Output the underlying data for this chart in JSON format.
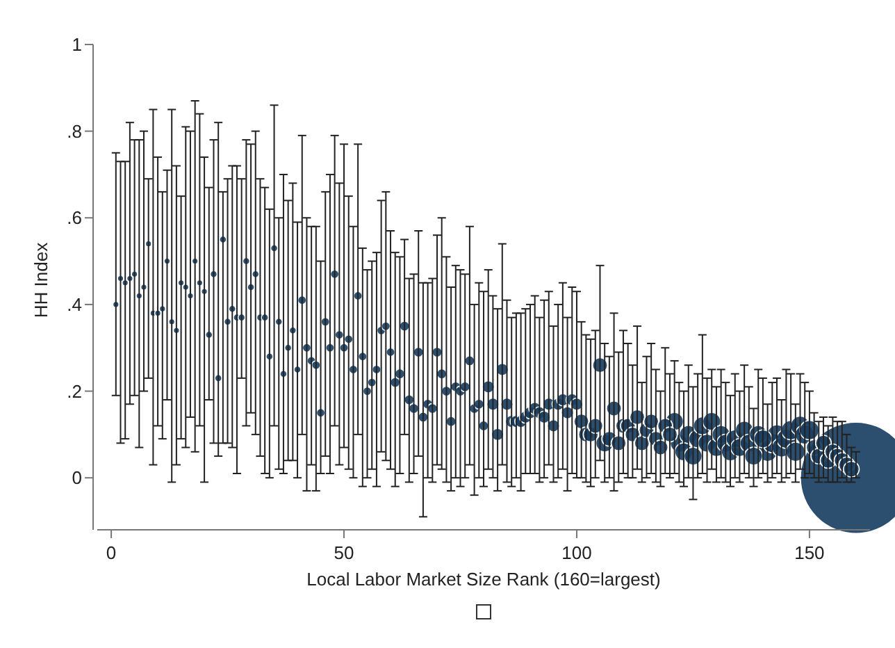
{
  "chart_data": {
    "type": "bubble",
    "xlabel": "Local Labor Market Size Rank (160=largest)",
    "ylabel": "HH Index",
    "xlim": [
      -3,
      163
    ],
    "ylim": [
      -0.12,
      1
    ],
    "xticks": [
      0,
      50,
      100,
      150
    ],
    "yticks": [
      0,
      {
        "value": 0.2,
        "label": ".2"
      },
      {
        "value": 0.4,
        "label": ".4"
      },
      {
        "value": 0.6,
        "label": ".6"
      },
      {
        "value": 0.8,
        "label": ".8"
      },
      1
    ],
    "grid": false,
    "series": [
      {
        "color": "#1a3f63",
        "x": [
          1,
          2,
          3,
          4,
          5,
          6,
          7,
          8,
          9,
          10,
          11,
          12,
          13,
          14,
          15,
          16,
          17,
          18,
          19,
          20,
          21,
          22,
          23,
          24,
          25,
          26,
          27,
          28,
          29,
          30,
          31,
          32,
          33,
          34,
          35,
          36,
          37,
          38,
          39,
          40,
          41,
          42,
          43,
          44,
          45,
          46,
          47,
          48,
          49,
          50,
          51,
          52,
          53,
          54,
          55,
          56,
          57,
          58,
          59,
          60,
          61,
          62,
          63,
          64,
          65,
          66,
          67,
          68,
          69,
          70,
          71,
          72,
          73,
          74,
          75,
          76,
          77,
          78,
          79,
          80,
          81,
          82,
          83,
          84,
          85,
          86,
          87,
          88,
          89,
          90,
          91,
          92,
          93,
          94,
          95,
          96,
          97,
          98,
          99,
          100,
          101,
          102,
          103,
          104,
          105,
          106,
          107,
          108,
          109,
          110,
          111,
          112,
          113,
          114,
          115,
          116,
          117,
          118,
          119,
          120,
          121,
          122,
          123,
          124,
          125,
          126,
          127,
          128,
          129,
          130,
          131,
          132,
          133,
          134,
          135,
          136,
          137,
          138,
          139,
          140,
          141,
          142,
          143,
          144,
          145,
          146,
          147,
          148,
          149,
          150,
          151,
          152,
          153,
          154,
          155,
          156,
          157,
          158,
          159,
          160
        ],
        "values": [
          0.4,
          0.46,
          0.45,
          0.46,
          0.47,
          0.42,
          0.44,
          0.54,
          0.38,
          0.38,
          0.39,
          0.5,
          0.36,
          0.34,
          0.45,
          0.44,
          0.42,
          0.5,
          0.45,
          0.43,
          0.33,
          0.47,
          0.23,
          0.55,
          0.36,
          0.39,
          0.37,
          0.37,
          0.5,
          0.44,
          0.47,
          0.37,
          0.37,
          0.28,
          0.53,
          0.36,
          0.24,
          0.3,
          0.34,
          0.25,
          0.41,
          0.3,
          0.27,
          0.26,
          0.15,
          0.36,
          0.3,
          0.47,
          0.33,
          0.3,
          0.32,
          0.25,
          0.42,
          0.28,
          0.2,
          0.22,
          0.25,
          0.34,
          0.35,
          0.29,
          0.22,
          0.24,
          0.35,
          0.18,
          0.16,
          0.29,
          0.14,
          0.17,
          0.16,
          0.29,
          0.24,
          0.2,
          0.13,
          0.21,
          0.2,
          0.21,
          0.27,
          0.16,
          0.17,
          0.12,
          0.21,
          0.17,
          0.1,
          0.25,
          0.17,
          0.13,
          0.13,
          0.13,
          0.14,
          0.15,
          0.16,
          0.15,
          0.14,
          0.17,
          0.12,
          0.17,
          0.18,
          0.15,
          0.18,
          0.17,
          0.13,
          0.1,
          0.1,
          0.12,
          0.26,
          0.08,
          0.09,
          0.16,
          0.08,
          0.12,
          0.12,
          0.1,
          0.14,
          0.08,
          0.11,
          0.13,
          0.09,
          0.07,
          0.12,
          0.1,
          0.13,
          0.08,
          0.06,
          0.1,
          0.05,
          0.09,
          0.12,
          0.08,
          0.13,
          0.07,
          0.1,
          0.08,
          0.06,
          0.09,
          0.07,
          0.11,
          0.08,
          0.05,
          0.1,
          0.09,
          0.06,
          0.08,
          0.1,
          0.07,
          0.09,
          0.11,
          0.06,
          0.12,
          0.1,
          0.11,
          0.07,
          0.05,
          0.08,
          0.04,
          0.06,
          0.05,
          0.04,
          0.03,
          0.02,
          0
        ],
        "errors": [
          [
            0.19,
            0.75
          ],
          [
            0.08,
            0.73
          ],
          [
            0.09,
            0.73
          ],
          [
            0.17,
            0.82
          ],
          [
            0.19,
            0.78
          ],
          [
            0.07,
            0.78
          ],
          [
            0.2,
            0.8
          ],
          [
            0.23,
            0.69
          ],
          [
            0.03,
            0.85
          ],
          [
            0.12,
            0.74
          ],
          [
            0.09,
            0.66
          ],
          [
            0.18,
            0.71
          ],
          [
            -0.01,
            0.85
          ],
          [
            0.03,
            0.72
          ],
          [
            0.09,
            0.65
          ],
          [
            0.07,
            0.81
          ],
          [
            0.14,
            0.8
          ],
          [
            0.06,
            0.87
          ],
          [
            0.12,
            0.84
          ],
          [
            -0.01,
            0.74
          ],
          [
            0.18,
            0.67
          ],
          [
            0.08,
            0.78
          ],
          [
            0.05,
            0.82
          ],
          [
            0.08,
            0.66
          ],
          [
            0.08,
            0.69
          ],
          [
            0.07,
            0.72
          ],
          [
            0.01,
            0.72
          ],
          [
            0.23,
            0.69
          ],
          [
            0.12,
            0.78
          ],
          [
            0.15,
            0.77
          ],
          [
            0.1,
            0.8
          ],
          [
            0.05,
            0.69
          ],
          [
            0.01,
            0.67
          ],
          [
            0.0,
            0.62
          ],
          [
            0.12,
            0.86
          ],
          [
            0.02,
            0.6
          ],
          [
            0.01,
            0.7
          ],
          [
            0.04,
            0.64
          ],
          [
            0.04,
            0.68
          ],
          [
            0.0,
            0.59
          ],
          [
            0.1,
            0.79
          ],
          [
            -0.03,
            0.6
          ],
          [
            0.03,
            0.58
          ],
          [
            -0.03,
            0.58
          ],
          [
            0.01,
            0.5
          ],
          [
            0.05,
            0.66
          ],
          [
            0.01,
            0.7
          ],
          [
            0.12,
            0.79
          ],
          [
            0.03,
            0.68
          ],
          [
            0.07,
            0.77
          ],
          [
            0.02,
            0.65
          ],
          [
            0.0,
            0.58
          ],
          [
            0.1,
            0.77
          ],
          [
            -0.02,
            0.53
          ],
          [
            0.0,
            0.48
          ],
          [
            0.02,
            0.5
          ],
          [
            -0.02,
            0.52
          ],
          [
            0.06,
            0.64
          ],
          [
            0.04,
            0.66
          ],
          [
            0.02,
            0.57
          ],
          [
            -0.02,
            0.52
          ],
          [
            0.01,
            0.51
          ],
          [
            0.1,
            0.55
          ],
          [
            -0.01,
            0.46
          ],
          [
            0.01,
            0.47
          ],
          [
            0.05,
            0.57
          ],
          [
            -0.09,
            0.45
          ],
          [
            0.0,
            0.45
          ],
          [
            -0.01,
            0.46
          ],
          [
            0.03,
            0.56
          ],
          [
            0.02,
            0.6
          ],
          [
            -0.01,
            0.51
          ],
          [
            -0.03,
            0.44
          ],
          [
            0.0,
            0.49
          ],
          [
            -0.02,
            0.48
          ],
          [
            0.0,
            0.47
          ],
          [
            0.03,
            0.58
          ],
          [
            -0.04,
            0.4
          ],
          [
            0.0,
            0.45
          ],
          [
            -0.02,
            0.43
          ],
          [
            0.02,
            0.48
          ],
          [
            0.0,
            0.42
          ],
          [
            -0.03,
            0.39
          ],
          [
            0.03,
            0.54
          ],
          [
            -0.01,
            0.41
          ],
          [
            -0.02,
            0.37
          ],
          [
            0.0,
            0.38
          ],
          [
            -0.03,
            0.38
          ],
          [
            0.01,
            0.39
          ],
          [
            0.01,
            0.4
          ],
          [
            0.01,
            0.42
          ],
          [
            -0.01,
            0.37
          ],
          [
            0.0,
            0.41
          ],
          [
            0.03,
            0.43
          ],
          [
            -0.01,
            0.35
          ],
          [
            0.0,
            0.4
          ],
          [
            0.02,
            0.45
          ],
          [
            -0.03,
            0.37
          ],
          [
            0.01,
            0.44
          ],
          [
            0.0,
            0.43
          ],
          [
            0.0,
            0.36
          ],
          [
            -0.01,
            0.33
          ],
          [
            -0.02,
            0.32
          ],
          [
            0.0,
            0.34
          ],
          [
            0.04,
            0.49
          ],
          [
            -0.01,
            0.31
          ],
          [
            0.0,
            0.28
          ],
          [
            -0.03,
            0.38
          ],
          [
            -0.01,
            0.29
          ],
          [
            0.01,
            0.34
          ],
          [
            0.0,
            0.31
          ],
          [
            0.0,
            0.26
          ],
          [
            0.02,
            0.35
          ],
          [
            -0.01,
            0.22
          ],
          [
            0.0,
            0.28
          ],
          [
            0.01,
            0.31
          ],
          [
            -0.01,
            0.25
          ],
          [
            -0.02,
            0.2
          ],
          [
            0.01,
            0.3
          ],
          [
            0.0,
            0.24
          ],
          [
            0.01,
            0.27
          ],
          [
            -0.01,
            0.22
          ],
          [
            -0.02,
            0.2
          ],
          [
            0.0,
            0.26
          ],
          [
            -0.05,
            0.21
          ],
          [
            0.0,
            0.24
          ],
          [
            0.01,
            0.33
          ],
          [
            -0.01,
            0.23
          ],
          [
            0.02,
            0.25
          ],
          [
            -0.01,
            0.21
          ],
          [
            0.0,
            0.25
          ],
          [
            -0.01,
            0.22
          ],
          [
            -0.02,
            0.19
          ],
          [
            0.0,
            0.24
          ],
          [
            -0.01,
            0.2
          ],
          [
            0.01,
            0.26
          ],
          [
            0.0,
            0.21
          ],
          [
            -0.02,
            0.16
          ],
          [
            0.0,
            0.25
          ],
          [
            0.01,
            0.23
          ],
          [
            -0.01,
            0.17
          ],
          [
            0.0,
            0.22
          ],
          [
            0.01,
            0.23
          ],
          [
            -0.01,
            0.18
          ],
          [
            0.0,
            0.25
          ],
          [
            0.01,
            0.24
          ],
          [
            -0.01,
            0.17
          ],
          [
            0.02,
            0.24
          ],
          [
            0.0,
            0.22
          ],
          [
            0.01,
            0.2
          ],
          [
            0.0,
            0.15
          ],
          [
            -0.01,
            0.13
          ],
          [
            0.0,
            0.14
          ],
          [
            -0.01,
            0.12
          ],
          [
            -0.01,
            0.14
          ],
          [
            -0.01,
            0.13
          ],
          [
            0.0,
            0.13
          ],
          [
            -0.01,
            0.1
          ],
          [
            -0.01,
            0.07
          ],
          [
            0.0,
            0.06
          ]
        ],
        "sizes": [
          0.003,
          0.003,
          0.003,
          0.003,
          0.003,
          0.003,
          0.003,
          0.003,
          0.003,
          0.003,
          0.003,
          0.003,
          0.003,
          0.003,
          0.003,
          0.003,
          0.003,
          0.003,
          0.003,
          0.003,
          0.004,
          0.004,
          0.004,
          0.004,
          0.004,
          0.004,
          0.004,
          0.004,
          0.004,
          0.004,
          0.004,
          0.004,
          0.004,
          0.004,
          0.004,
          0.004,
          0.004,
          0.004,
          0.004,
          0.004,
          0.006,
          0.006,
          0.006,
          0.006,
          0.006,
          0.006,
          0.006,
          0.006,
          0.006,
          0.006,
          0.006,
          0.006,
          0.006,
          0.006,
          0.006,
          0.006,
          0.006,
          0.006,
          0.006,
          0.006,
          0.008,
          0.008,
          0.008,
          0.008,
          0.008,
          0.008,
          0.008,
          0.008,
          0.008,
          0.008,
          0.008,
          0.008,
          0.008,
          0.008,
          0.008,
          0.008,
          0.008,
          0.008,
          0.008,
          0.008,
          0.012,
          0.012,
          0.012,
          0.012,
          0.012,
          0.012,
          0.012,
          0.012,
          0.012,
          0.012,
          0.012,
          0.012,
          0.012,
          0.012,
          0.012,
          0.012,
          0.012,
          0.012,
          0.012,
          0.012,
          0.018,
          0.018,
          0.018,
          0.018,
          0.018,
          0.025,
          0.018,
          0.018,
          0.018,
          0.018,
          0.018,
          0.018,
          0.018,
          0.018,
          0.018,
          0.018,
          0.018,
          0.018,
          0.018,
          0.018,
          0.026,
          0.026,
          0.026,
          0.026,
          0.026,
          0.026,
          0.026,
          0.026,
          0.026,
          0.026,
          0.026,
          0.026,
          0.026,
          0.026,
          0.026,
          0.026,
          0.026,
          0.026,
          0.026,
          0.026,
          0.03,
          0.03,
          0.03,
          0.03,
          0.03,
          0.03,
          0.03,
          0.03,
          0.03,
          0.03,
          0.02,
          0.02,
          0.02,
          0.02,
          0.02,
          0.02,
          0.02,
          0.02,
          0.02,
          1
        ]
      }
    ]
  }
}
